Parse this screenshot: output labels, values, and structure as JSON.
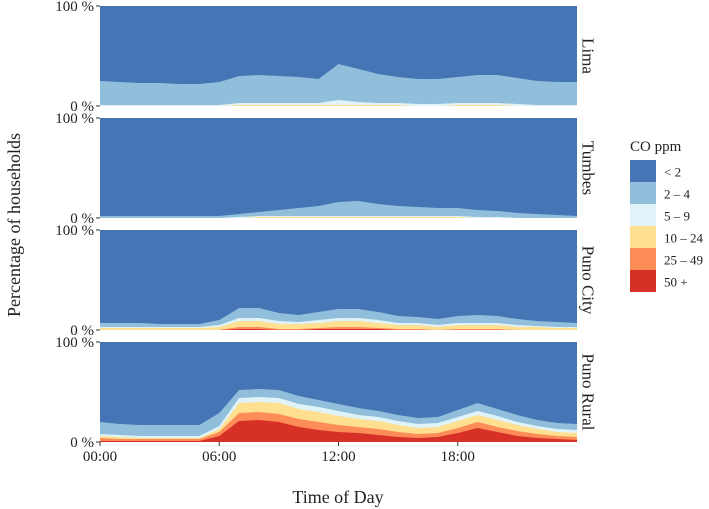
{
  "chart_data": {
    "type": "area",
    "stacked": true,
    "title": "",
    "xlabel": "Time of Day",
    "ylabel": "Percentage of households",
    "xlim": [
      0,
      24
    ],
    "ylim": [
      0,
      100
    ],
    "x_ticks": [
      {
        "value": 0,
        "label": "00:00"
      },
      {
        "value": 6,
        "label": "06:00"
      },
      {
        "value": 12,
        "label": "12:00"
      },
      {
        "value": 18,
        "label": "18:00"
      }
    ],
    "y_ticks": [
      {
        "value": 0,
        "label": "0 %"
      },
      {
        "value": 100,
        "label": "100 %"
      }
    ],
    "legend": {
      "title": "CO ppm",
      "position": "right",
      "entries": [
        {
          "label": "< 2",
          "color": "#4575b4"
        },
        {
          "label": "2 – 4",
          "color": "#91bfdb"
        },
        {
          "label": "5 – 9",
          "color": "#e0f3f8"
        },
        {
          "label": "10 – 24",
          "color": "#fee090"
        },
        {
          "label": "25 – 49",
          "color": "#fc8d59"
        },
        {
          "label": "50 +",
          "color": "#d73027"
        }
      ]
    },
    "hours": [
      0,
      1,
      2,
      3,
      4,
      5,
      6,
      7,
      8,
      9,
      10,
      11,
      12,
      13,
      14,
      15,
      16,
      17,
      18,
      19,
      20,
      21,
      22,
      23,
      24
    ],
    "panels": [
      {
        "name": "Lima",
        "series": [
          {
            "name": "2 – 4",
            "values": [
              24,
              23,
              22,
              22,
              21,
              21,
              23,
              27,
              28,
              27,
              26,
              24,
              36,
              33,
              29,
              26,
              25,
              25,
              26,
              28,
              28,
              26,
              24,
              23,
              23
            ]
          },
          {
            "name": "5 – 9",
            "values": [
              1,
              1,
              1,
              1,
              1,
              1,
              1,
              2,
              2,
              2,
              2,
              2,
              5,
              3,
              2,
              2,
              2,
              2,
              2,
              2,
              2,
              2,
              1,
              1,
              1
            ]
          },
          {
            "name": "10 – 24",
            "values": [
              0,
              0,
              0,
              0,
              0,
              0,
              0,
              1,
              1,
              1,
              1,
              1,
              1,
              1,
              1,
              1,
              0,
              0,
              1,
              1,
              1,
              0,
              0,
              0,
              0
            ]
          },
          {
            "name": "25 – 49",
            "values": [
              0,
              0,
              0,
              0,
              0,
              0,
              0,
              0,
              0,
              0,
              0,
              0,
              0,
              0,
              0,
              0,
              0,
              0,
              0,
              0,
              0,
              0,
              0,
              0,
              0
            ]
          },
          {
            "name": "50 +",
            "values": [
              0,
              0,
              0,
              0,
              0,
              0,
              0,
              0,
              0,
              0,
              0,
              0,
              0,
              0,
              0,
              0,
              0,
              0,
              0,
              0,
              0,
              0,
              0,
              0,
              0
            ]
          }
        ]
      },
      {
        "name": "Tumbes",
        "series": [
          {
            "name": "2 – 4",
            "values": [
              2,
              2,
              2,
              2,
              2,
              2,
              2,
              3,
              4,
              6,
              8,
              10,
              14,
              15,
              12,
              10,
              9,
              8,
              8,
              7,
              6,
              5,
              4,
              3,
              2
            ]
          },
          {
            "name": "5 – 9",
            "values": [
              0,
              0,
              0,
              0,
              0,
              0,
              0,
              1,
              1,
              1,
              1,
              1,
              1,
              1,
              1,
              1,
              1,
              1,
              1,
              1,
              1,
              0,
              0,
              0,
              0
            ]
          },
          {
            "name": "10 – 24",
            "values": [
              0,
              0,
              0,
              0,
              0,
              0,
              0,
              0,
              1,
              1,
              1,
              1,
              1,
              1,
              1,
              1,
              1,
              1,
              1,
              0,
              0,
              0,
              0,
              0,
              0
            ]
          },
          {
            "name": "25 – 49",
            "values": [
              0,
              0,
              0,
              0,
              0,
              0,
              0,
              0,
              0,
              0,
              0,
              0,
              0,
              0,
              0,
              0,
              0,
              0,
              0,
              0,
              0,
              0,
              0,
              0,
              0
            ]
          },
          {
            "name": "50 +",
            "values": [
              0,
              0,
              0,
              0,
              0,
              0,
              0,
              0,
              0,
              0,
              0,
              0,
              0,
              0,
              0,
              0,
              0,
              0,
              0,
              0,
              0,
              0,
              0,
              0,
              0
            ]
          }
        ]
      },
      {
        "name": "Puno City",
        "series": [
          {
            "name": "2 – 4",
            "values": [
              4,
              4,
              4,
              3,
              3,
              3,
              5,
              10,
              10,
              8,
              7,
              8,
              9,
              9,
              8,
              7,
              6,
              6,
              7,
              8,
              7,
              6,
              5,
              5,
              4
            ]
          },
          {
            "name": "5 – 9",
            "values": [
              1,
              1,
              1,
              1,
              1,
              1,
              2,
              3,
              3,
              3,
              2,
              3,
              3,
              3,
              3,
              2,
              2,
              2,
              2,
              2,
              2,
              2,
              1,
              1,
              1
            ]
          },
          {
            "name": "10 – 24",
            "values": [
              2,
              2,
              2,
              2,
              2,
              2,
              3,
              6,
              6,
              5,
              5,
              5,
              6,
              6,
              5,
              4,
              4,
              3,
              4,
              4,
              4,
              3,
              3,
              2,
              2
            ]
          },
          {
            "name": "25 – 49",
            "values": [
              0,
              0,
              0,
              0,
              0,
              0,
              0,
              2,
              2,
              1,
              1,
              1,
              2,
              2,
              1,
              1,
              1,
              0,
              1,
              1,
              1,
              0,
              0,
              0,
              0
            ]
          },
          {
            "name": "50 +",
            "values": [
              0,
              0,
              0,
              0,
              0,
              0,
              0,
              1,
              1,
              0,
              0,
              1,
              1,
              1,
              1,
              0,
              0,
              0,
              0,
              0,
              0,
              0,
              0,
              0,
              0
            ]
          }
        ]
      },
      {
        "name": "Puno Rural",
        "series": [
          {
            "name": "2 – 4",
            "values": [
              12,
              11,
              11,
              11,
              11,
              11,
              13,
              8,
              8,
              8,
              8,
              7,
              7,
              7,
              6,
              6,
              6,
              6,
              7,
              8,
              7,
              7,
              6,
              6,
              6
            ]
          },
          {
            "name": "5 – 9",
            "values": [
              2,
              2,
              2,
              2,
              2,
              2,
              3,
              5,
              5,
              5,
              5,
              5,
              5,
              4,
              4,
              4,
              4,
              4,
              4,
              4,
              4,
              3,
              3,
              3,
              3
            ]
          },
          {
            "name": "10 – 24",
            "values": [
              2,
              2,
              1,
              1,
              1,
              1,
              3,
              10,
              10,
              11,
              10,
              10,
              9,
              8,
              8,
              7,
              6,
              6,
              7,
              7,
              7,
              6,
              5,
              4,
              4
            ]
          },
          {
            "name": "25 – 49",
            "values": [
              3,
              2,
              2,
              2,
              2,
              2,
              4,
              8,
              8,
              8,
              8,
              8,
              7,
              6,
              6,
              5,
              4,
              4,
              5,
              6,
              5,
              5,
              4,
              3,
              3
            ]
          },
          {
            "name": "50 +",
            "values": [
              1,
              1,
              1,
              1,
              1,
              1,
              6,
              21,
              22,
              20,
              15,
              12,
              10,
              9,
              7,
              5,
              4,
              5,
              9,
              14,
              10,
              6,
              4,
              3,
              2
            ]
          }
        ]
      }
    ]
  }
}
